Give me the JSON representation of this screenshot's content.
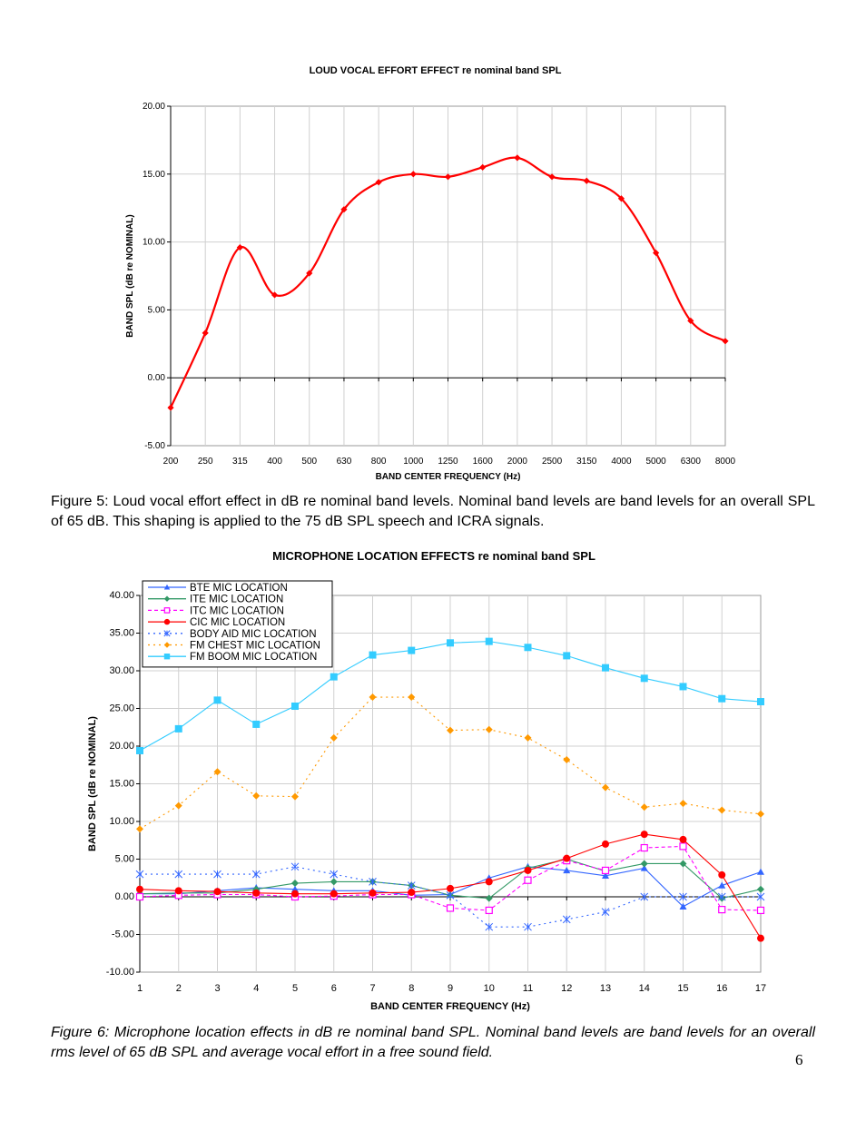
{
  "figure5": {
    "caption": "Figure 5:  Loud vocal effort effect in dB re nominal band levels. Nominal band levels are band levels for an overall SPL of 65 dB.  This shaping is applied to the 75 dB SPL speech and ICRA signals."
  },
  "figure6": {
    "caption": "Figure 6:  Microphone location effects in dB re nominal band SPL.  Nominal band levels are band levels for an overall rms level of 65 dB SPL and average vocal effort in a free sound field."
  },
  "page_number": "6",
  "chart_data": [
    {
      "type": "line",
      "title": "LOUD VOCAL EFFORT EFFECT re nominal band SPL",
      "xlabel": "BAND CENTER FREQUENCY (Hz)",
      "ylabel": "BAND SPL  (dB re NOMINAL)",
      "categories": [
        "200",
        "250",
        "315",
        "400",
        "500",
        "630",
        "800",
        "1000",
        "1250",
        "1600",
        "2000",
        "2500",
        "3150",
        "4000",
        "5000",
        "6300",
        "8000"
      ],
      "ylim": [
        -5,
        20
      ],
      "yticks": [
        "-5.00",
        "0.00",
        "5.00",
        "10.00",
        "15.00",
        "20.00"
      ],
      "grid": true,
      "legend": "none",
      "series": [
        {
          "values": [
            -2.2,
            3.3,
            9.6,
            6.1,
            7.7,
            12.4,
            14.4,
            15.0,
            14.8,
            15.5,
            16.2,
            14.8,
            14.5,
            13.2,
            9.2,
            4.2,
            2.7
          ],
          "color": "#ff0000",
          "marker": "diamond",
          "style": "solid"
        }
      ]
    },
    {
      "type": "line",
      "title": "MICROPHONE LOCATION EFFECTS re nominal band SPL",
      "xlabel": "BAND CENTER FREQUENCY (Hz)",
      "ylabel": "BAND SPL  (dB re NOMINAL)",
      "categories": [
        "1",
        "2",
        "3",
        "4",
        "5",
        "6",
        "7",
        "8",
        "9",
        "10",
        "11",
        "12",
        "13",
        "14",
        "15",
        "16",
        "17"
      ],
      "ylim": [
        -10,
        40
      ],
      "yticks": [
        "-10.00",
        "-5.00",
        "0.00",
        "5.00",
        "10.00",
        "15.00",
        "20.00",
        "25.00",
        "30.00",
        "35.00",
        "40.00"
      ],
      "grid": true,
      "legend": "top-left",
      "series": [
        {
          "name": "BTE MIC LOCATION",
          "color": "#3366ff",
          "marker": "triangle",
          "style": "solid",
          "values": [
            0.4,
            0.4,
            0.8,
            1.2,
            1.0,
            0.8,
            0.8,
            0.2,
            0.3,
            2.5,
            4.0,
            3.5,
            2.8,
            3.8,
            -1.3,
            1.5,
            3.3
          ]
        },
        {
          "name": "ITE MIC LOCATION",
          "color": "#339966",
          "marker": "diamond",
          "style": "solid",
          "values": [
            0.4,
            0.5,
            0.5,
            1.0,
            1.8,
            2.0,
            2.0,
            1.5,
            0.2,
            -0.2,
            3.8,
            5.0,
            3.4,
            4.4,
            4.4,
            -0.2,
            1.0
          ]
        },
        {
          "name": "ITC MIC LOCATION",
          "color": "#ff00ff",
          "marker": "square-open",
          "style": "dashed",
          "values": [
            0.0,
            0.2,
            0.3,
            0.3,
            0.0,
            0.1,
            0.3,
            0.3,
            -1.5,
            -1.8,
            2.2,
            4.8,
            3.5,
            6.5,
            6.7,
            -1.7,
            -1.8
          ]
        },
        {
          "name": "CIC MIC LOCATION",
          "color": "#ff0000",
          "marker": "circle",
          "style": "solid",
          "values": [
            1.0,
            0.8,
            0.7,
            0.5,
            0.4,
            0.4,
            0.5,
            0.6,
            1.1,
            2.0,
            3.5,
            5.1,
            7.0,
            8.3,
            7.6,
            2.9,
            -5.5
          ]
        },
        {
          "name": "BODY AID MIC LOCATION",
          "color": "#3366ff",
          "marker": "asterisk",
          "style": "dotted",
          "values": [
            3.0,
            3.0,
            3.0,
            3.0,
            4.0,
            3.0,
            2.0,
            1.5,
            0.2,
            -4.0,
            -4.0,
            -3.0,
            -2.0,
            0.0,
            0.0,
            0.0,
            0.0
          ]
        },
        {
          "name": "FM CHEST MIC LOCATION",
          "color": "#ff9900",
          "marker": "diamond",
          "style": "dotted",
          "values": [
            9.0,
            12.1,
            16.6,
            13.4,
            13.3,
            21.1,
            26.5,
            26.5,
            22.1,
            22.2,
            21.1,
            18.2,
            14.5,
            11.9,
            12.4,
            11.5,
            11.0
          ]
        },
        {
          "name": "FM BOOM MIC LOCATION",
          "color": "#33ccff",
          "marker": "square",
          "style": "solid",
          "values": [
            19.4,
            22.3,
            26.1,
            22.9,
            25.3,
            29.2,
            32.1,
            32.7,
            33.7,
            33.9,
            33.1,
            32.0,
            30.4,
            29.0,
            27.9,
            26.3,
            25.9
          ]
        }
      ]
    }
  ]
}
